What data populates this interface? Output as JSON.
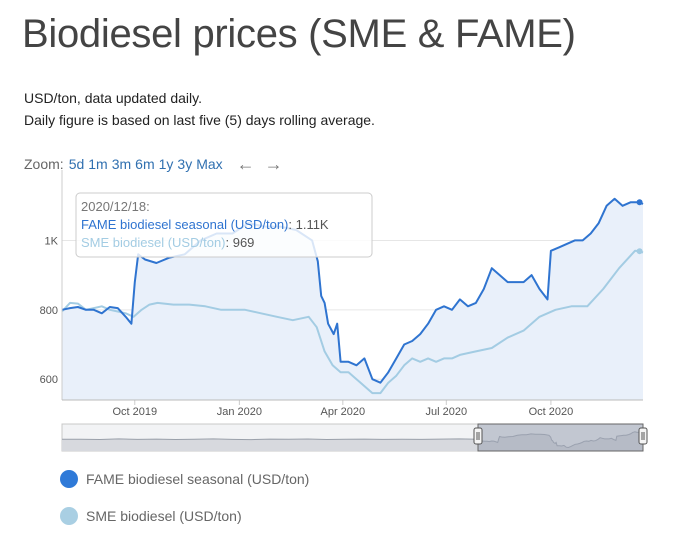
{
  "page": {
    "title": "Biodiesel prices (SME & FAME)",
    "subtitle1": "USD/ton, data updated daily.",
    "subtitle2": "Daily figure is based on last five (5) days rolling average."
  },
  "zoom": {
    "label": "Zoom:",
    "options": [
      "5d",
      "1m",
      "3m",
      "6m",
      "1y",
      "3y",
      "Max"
    ],
    "back_icon": "arrow-left-icon",
    "forward_icon": "arrow-right-icon"
  },
  "tooltip": {
    "date": "2020/12/18:",
    "fame_label": "FAME biodiesel seasonal (USD/ton)",
    "fame_value": "1.11K",
    "sme_label": "SME biodiesel (USD/ton)",
    "sme_value": "969"
  },
  "legend": {
    "fame": "FAME biodiesel seasonal (USD/ton)",
    "sme": "SME biodiesel (USD/ton)"
  },
  "colors": {
    "fame": "#2f74d0",
    "sme": "#a3cce3",
    "fame_legend": "#2f7ad8",
    "sme_legend": "#a9cfe3",
    "area_fill": "#e9f0fa",
    "navigator_fill": "#9aa3b3"
  },
  "chart_data": {
    "type": "line",
    "title": "",
    "xlabel": "",
    "ylabel": "",
    "x_ticks": [
      "Oct 2019",
      "Jan 2020",
      "Apr 2020",
      "Jul 2020",
      "Oct 2020"
    ],
    "y_ticks": [
      "600",
      "800",
      "1K"
    ],
    "ylim": [
      540,
      1180
    ],
    "xlim": [
      "2019-07-29",
      "2020-12-21"
    ],
    "grid": "horizontal",
    "legend_position": "bottom-left",
    "series": [
      {
        "name": "FAME biodiesel seasonal (USD/ton)",
        "points": [
          [
            "2019-07-29",
            800
          ],
          [
            "2019-08-05",
            805
          ],
          [
            "2019-08-12",
            808
          ],
          [
            "2019-08-19",
            800
          ],
          [
            "2019-08-26",
            800
          ],
          [
            "2019-09-02",
            790
          ],
          [
            "2019-09-09",
            808
          ],
          [
            "2019-09-16",
            805
          ],
          [
            "2019-09-23",
            780
          ],
          [
            "2019-09-28",
            760
          ],
          [
            "2019-10-01",
            880
          ],
          [
            "2019-10-04",
            960
          ],
          [
            "2019-10-10",
            945
          ],
          [
            "2019-10-20",
            935
          ],
          [
            "2019-10-31",
            950
          ],
          [
            "2019-11-14",
            960
          ],
          [
            "2019-11-28",
            1000
          ],
          [
            "2019-12-12",
            1020
          ],
          [
            "2019-12-26",
            1020
          ],
          [
            "2020-01-09",
            1050
          ],
          [
            "2020-01-23",
            1040
          ],
          [
            "2020-02-06",
            1040
          ],
          [
            "2020-02-20",
            1030
          ],
          [
            "2020-03-05",
            1000
          ],
          [
            "2020-03-10",
            940
          ],
          [
            "2020-03-13",
            840
          ],
          [
            "2020-03-16",
            820
          ],
          [
            "2020-03-19",
            760
          ],
          [
            "2020-03-24",
            730
          ],
          [
            "2020-03-27",
            760
          ],
          [
            "2020-03-30",
            650
          ],
          [
            "2020-04-06",
            650
          ],
          [
            "2020-04-13",
            640
          ],
          [
            "2020-04-20",
            660
          ],
          [
            "2020-04-27",
            600
          ],
          [
            "2020-05-04",
            590
          ],
          [
            "2020-05-11",
            620
          ],
          [
            "2020-05-18",
            660
          ],
          [
            "2020-05-25",
            700
          ],
          [
            "2020-06-01",
            710
          ],
          [
            "2020-06-08",
            730
          ],
          [
            "2020-06-15",
            760
          ],
          [
            "2020-06-22",
            800
          ],
          [
            "2020-06-29",
            810
          ],
          [
            "2020-07-06",
            800
          ],
          [
            "2020-07-13",
            830
          ],
          [
            "2020-07-20",
            810
          ],
          [
            "2020-07-27",
            820
          ],
          [
            "2020-08-03",
            860
          ],
          [
            "2020-08-10",
            920
          ],
          [
            "2020-08-17",
            900
          ],
          [
            "2020-08-24",
            880
          ],
          [
            "2020-08-31",
            880
          ],
          [
            "2020-09-07",
            880
          ],
          [
            "2020-09-14",
            900
          ],
          [
            "2020-09-21",
            860
          ],
          [
            "2020-09-28",
            830
          ],
          [
            "2020-10-01",
            970
          ],
          [
            "2020-10-08",
            980
          ],
          [
            "2020-10-15",
            990
          ],
          [
            "2020-10-22",
            1000
          ],
          [
            "2020-10-29",
            1000
          ],
          [
            "2020-11-05",
            1020
          ],
          [
            "2020-11-12",
            1050
          ],
          [
            "2020-11-19",
            1100
          ],
          [
            "2020-11-26",
            1120
          ],
          [
            "2020-12-03",
            1100
          ],
          [
            "2020-12-10",
            1110
          ],
          [
            "2020-12-18",
            1110
          ],
          [
            "2020-12-21",
            1105
          ]
        ]
      },
      {
        "name": "SME biodiesel (USD/ton)",
        "points": [
          [
            "2019-07-29",
            795
          ],
          [
            "2019-08-05",
            820
          ],
          [
            "2019-08-12",
            818
          ],
          [
            "2019-08-19",
            800
          ],
          [
            "2019-08-26",
            805
          ],
          [
            "2019-09-02",
            810
          ],
          [
            "2019-09-09",
            800
          ],
          [
            "2019-09-16",
            795
          ],
          [
            "2019-09-23",
            790
          ],
          [
            "2019-09-30",
            780
          ],
          [
            "2019-10-07",
            800
          ],
          [
            "2019-10-14",
            815
          ],
          [
            "2019-10-21",
            820
          ],
          [
            "2019-11-04",
            815
          ],
          [
            "2019-11-18",
            815
          ],
          [
            "2019-12-02",
            810
          ],
          [
            "2019-12-16",
            800
          ],
          [
            "2020-01-06",
            800
          ],
          [
            "2020-01-20",
            790
          ],
          [
            "2020-02-03",
            780
          ],
          [
            "2020-02-17",
            770
          ],
          [
            "2020-03-02",
            780
          ],
          [
            "2020-03-09",
            750
          ],
          [
            "2020-03-16",
            680
          ],
          [
            "2020-03-23",
            640
          ],
          [
            "2020-03-30",
            620
          ],
          [
            "2020-04-06",
            620
          ],
          [
            "2020-04-13",
            600
          ],
          [
            "2020-04-20",
            580
          ],
          [
            "2020-04-27",
            560
          ],
          [
            "2020-05-04",
            560
          ],
          [
            "2020-05-11",
            590
          ],
          [
            "2020-05-18",
            610
          ],
          [
            "2020-05-25",
            640
          ],
          [
            "2020-06-01",
            660
          ],
          [
            "2020-06-08",
            650
          ],
          [
            "2020-06-15",
            660
          ],
          [
            "2020-06-22",
            650
          ],
          [
            "2020-06-29",
            660
          ],
          [
            "2020-07-06",
            660
          ],
          [
            "2020-07-13",
            670
          ],
          [
            "2020-07-27",
            680
          ],
          [
            "2020-08-10",
            690
          ],
          [
            "2020-08-24",
            720
          ],
          [
            "2020-09-07",
            740
          ],
          [
            "2020-09-21",
            780
          ],
          [
            "2020-10-05",
            800
          ],
          [
            "2020-10-19",
            810
          ],
          [
            "2020-11-02",
            810
          ],
          [
            "2020-11-16",
            860
          ],
          [
            "2020-11-30",
            920
          ],
          [
            "2020-12-14",
            970
          ],
          [
            "2020-12-18",
            969
          ],
          [
            "2020-12-21",
            965
          ]
        ]
      }
    ]
  }
}
